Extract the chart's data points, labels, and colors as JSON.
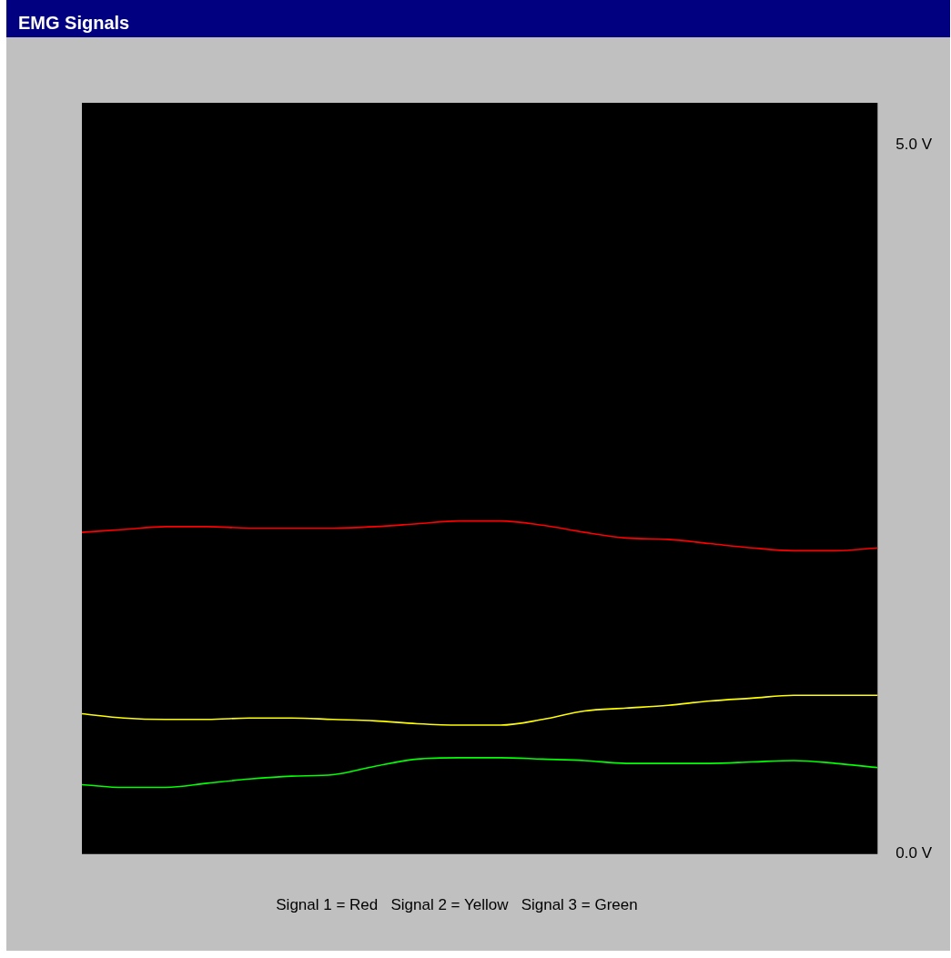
{
  "chart_data": {
    "type": "line",
    "title": "EMG Signals",
    "categories": [
      null,
      null,
      null,
      null,
      null,
      null,
      null,
      null,
      null,
      null,
      null,
      null,
      null,
      null,
      null,
      null,
      null,
      null,
      null,
      null
    ],
    "series": [
      {
        "color": "#ff0000",
        "values": [
          2.27,
          2.29,
          2.31,
          2.31,
          2.3,
          2.3,
          2.3,
          2.31,
          2.33,
          2.35,
          2.35,
          2.32,
          2.27,
          2.23,
          2.22,
          2.19,
          2.16,
          2.14,
          2.14,
          2.16
        ]
      },
      {
        "color": "#ffff00",
        "values": [
          0.99,
          0.96,
          0.95,
          0.95,
          0.96,
          0.96,
          0.95,
          0.94,
          0.92,
          0.91,
          0.91,
          0.95,
          1.01,
          1.03,
          1.05,
          1.08,
          1.1,
          1.12,
          1.12,
          1.12
        ]
      },
      {
        "color": "#00ff00",
        "values": [
          0.49,
          0.47,
          0.47,
          0.5,
          0.53,
          0.55,
          0.56,
          0.62,
          0.67,
          0.68,
          0.68,
          0.67,
          0.66,
          0.64,
          0.64,
          0.64,
          0.65,
          0.66,
          0.64,
          0.61
        ]
      }
    ],
    "ylim": [
      0,
      5.3
    ],
    "yticks": [
      {
        "value": 5,
        "label": "5.0 V"
      },
      {
        "value": 0,
        "label": "0.0 V"
      }
    ],
    "grid": false,
    "legend": false,
    "marker": "none",
    "line_style": "solid",
    "tick_labels": "y",
    "annotations": [
      "Signal 1 = Red   Signal 2 = Yellow   Signal 3 = Green"
    ]
  }
}
